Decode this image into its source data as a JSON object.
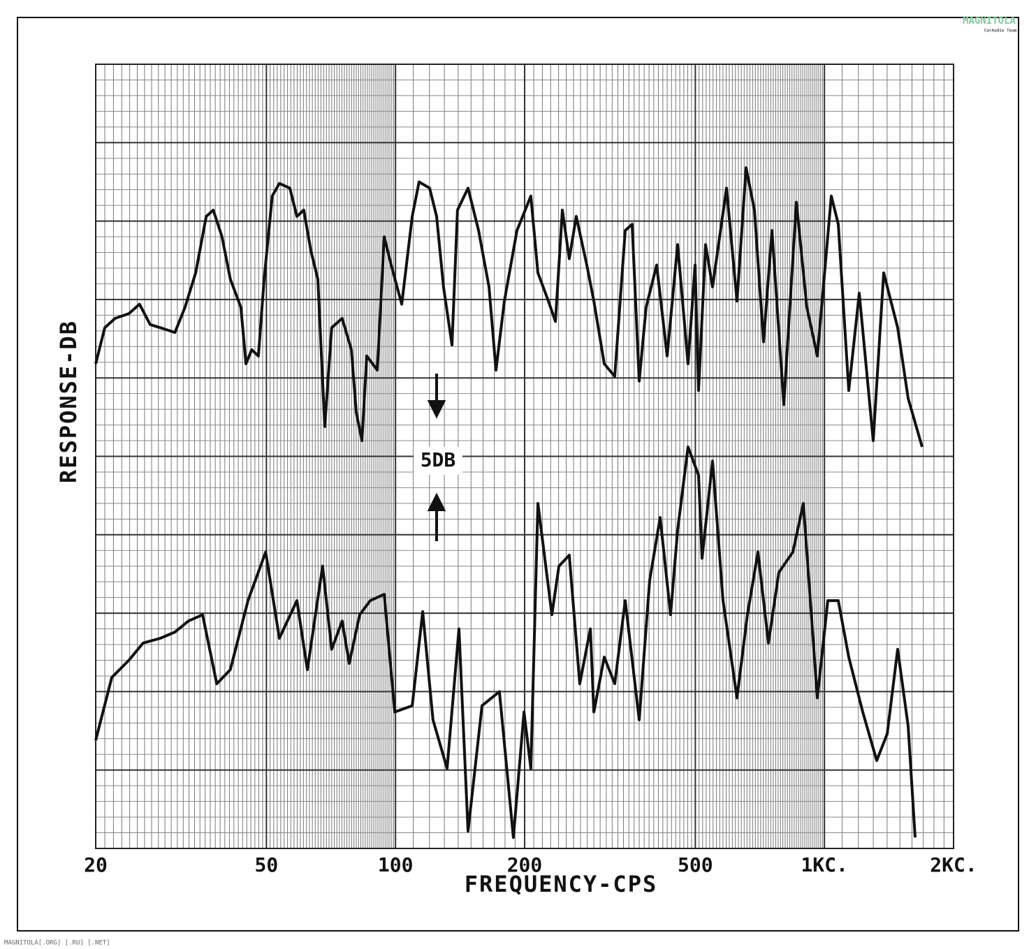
{
  "chart_data": {
    "type": "line",
    "x_label": "FREQUENCY-CPS",
    "y_label": "RESPONSE-DB",
    "annotation": "5DB",
    "watermark": "MAGNITOLA",
    "watermark_sub": "CarAudio Team",
    "footer": "MAGNITOLA[.ORG] [.RU] [.NET]",
    "xscale": "log",
    "xlim": [
      20,
      2000
    ],
    "ylim": [
      0,
      50
    ],
    "grid": true,
    "xticks": [
      20,
      50,
      100,
      200,
      500,
      {
        "value": 1000,
        "label": "1KC."
      },
      {
        "value": 2000,
        "label": "2KC."
      }
    ],
    "series": [
      {
        "color": "#111111",
        "x": [
          20,
          21.0,
          22.2,
          23.9,
          25.3,
          26.8,
          28.3,
          30.6,
          32.3,
          34.2,
          36.2,
          37.6,
          39.4,
          41.2,
          43.6,
          44.8,
          46.2,
          47.9,
          49.4,
          51.6,
          53.6,
          56.7,
          58.9,
          61.1,
          63.5,
          65.9,
          68.4,
          71.0,
          75.1,
          78.9,
          81.0,
          83.5,
          85.7,
          90.7,
          94.1,
          97.7,
          103.4,
          109.4,
          113.5,
          120.1,
          124.7,
          129.4,
          135.4,
          139.5,
          147.6,
          156.2,
          165.2,
          171.5,
          179.4,
          191.9,
          206.8,
          214.8,
          227.2,
          236.0,
          244.9,
          254.2,
          263.9,
          279.2,
          290.0,
          306.7,
          324.4,
          343.2,
          356.2,
          369.9,
          384.0,
          406.3,
          429.8,
          454.6,
          480.9,
          499.3,
          508.8,
          528.2,
          548.4,
          591.1,
          625.3,
          656.6,
          686.8,
          721.2,
          754.5,
          803.9,
          860.3,
          910.0,
          962.6,
          1037.6,
          1077.3,
          1139.6,
          1205.5,
          1299.4,
          1374.6,
          1481.7,
          1567.3,
          1689.6
        ],
        "values": [
          30.9,
          33.2,
          33.8,
          34.1,
          34.7,
          33.4,
          33.2,
          32.9,
          34.5,
          36.7,
          40.3,
          40.7,
          39.0,
          36.3,
          34.5,
          30.9,
          31.8,
          31.4,
          36.3,
          41.6,
          42.4,
          42.1,
          40.3,
          40.7,
          38.1,
          36.3,
          26.9,
          33.2,
          33.8,
          31.8,
          27.8,
          26.0,
          31.4,
          30.5,
          39.0,
          37.2,
          34.7,
          40.3,
          42.5,
          42.1,
          40.3,
          35.8,
          32.1,
          40.7,
          42.1,
          39.4,
          35.8,
          30.5,
          34.9,
          39.4,
          41.6,
          36.7,
          34.9,
          33.6,
          40.7,
          37.6,
          40.3,
          37.2,
          34.9,
          30.9,
          30.1,
          39.4,
          39.8,
          29.8,
          34.5,
          37.2,
          31.4,
          38.5,
          30.9,
          37.2,
          29.2,
          38.5,
          35.8,
          42.1,
          34.9,
          43.4,
          40.7,
          32.3,
          39.4,
          28.3,
          41.2,
          34.5,
          31.4,
          41.6,
          39.8,
          29.2,
          35.4,
          26.0,
          36.7,
          33.2,
          28.7,
          25.6
        ]
      },
      {
        "color": "#111111",
        "x": [
          20,
          21.8,
          23.9,
          25.8,
          28.3,
          30.6,
          32.9,
          35.5,
          38.3,
          41.2,
          45.3,
          49.8,
          53.6,
          58.9,
          62.3,
          67.6,
          71.0,
          75.1,
          78.0,
          82.5,
          87.3,
          94.1,
          99.6,
          109.4,
          115.7,
          122.3,
          131.9,
          140.6,
          147.6,
          159.1,
          174.7,
          188.3,
          199.3,
          206.8,
          214.8,
          231.5,
          240.4,
          254.2,
          268.9,
          284.6,
          290.0,
          306.7,
          324.4,
          343.2,
          369.9,
          391.3,
          414.0,
          437.8,
          454.6,
          480.9,
          508.8,
          518.4,
          548.4,
          580.2,
          625.3,
          661.4,
          699.8,
          740.3,
          783.0,
          844.2,
          892.9,
          962.6,
          1018.2,
          1077.3,
          1139.6,
          1228.2,
          1324.0,
          1400.6,
          1481.7,
          1567.3,
          1627.5
        ],
        "values": [
          6.9,
          10.9,
          12.0,
          13.1,
          13.4,
          13.8,
          14.5,
          14.9,
          10.5,
          11.4,
          15.8,
          18.9,
          13.4,
          15.8,
          11.4,
          18.0,
          12.7,
          14.5,
          11.8,
          14.9,
          15.8,
          16.2,
          8.7,
          9.1,
          15.1,
          8.2,
          5.1,
          14.0,
          1.1,
          9.1,
          10.0,
          0.7,
          8.7,
          5.1,
          22.0,
          14.9,
          18.0,
          18.7,
          10.5,
          14.0,
          8.7,
          12.2,
          10.5,
          15.8,
          8.2,
          17.1,
          21.1,
          14.9,
          20.3,
          25.6,
          23.8,
          18.5,
          24.7,
          15.8,
          9.6,
          14.9,
          18.9,
          13.1,
          17.6,
          18.9,
          22.0,
          9.6,
          15.8,
          15.8,
          12.2,
          8.7,
          5.6,
          7.3,
          12.7,
          7.8,
          0.7
        ]
      }
    ]
  }
}
